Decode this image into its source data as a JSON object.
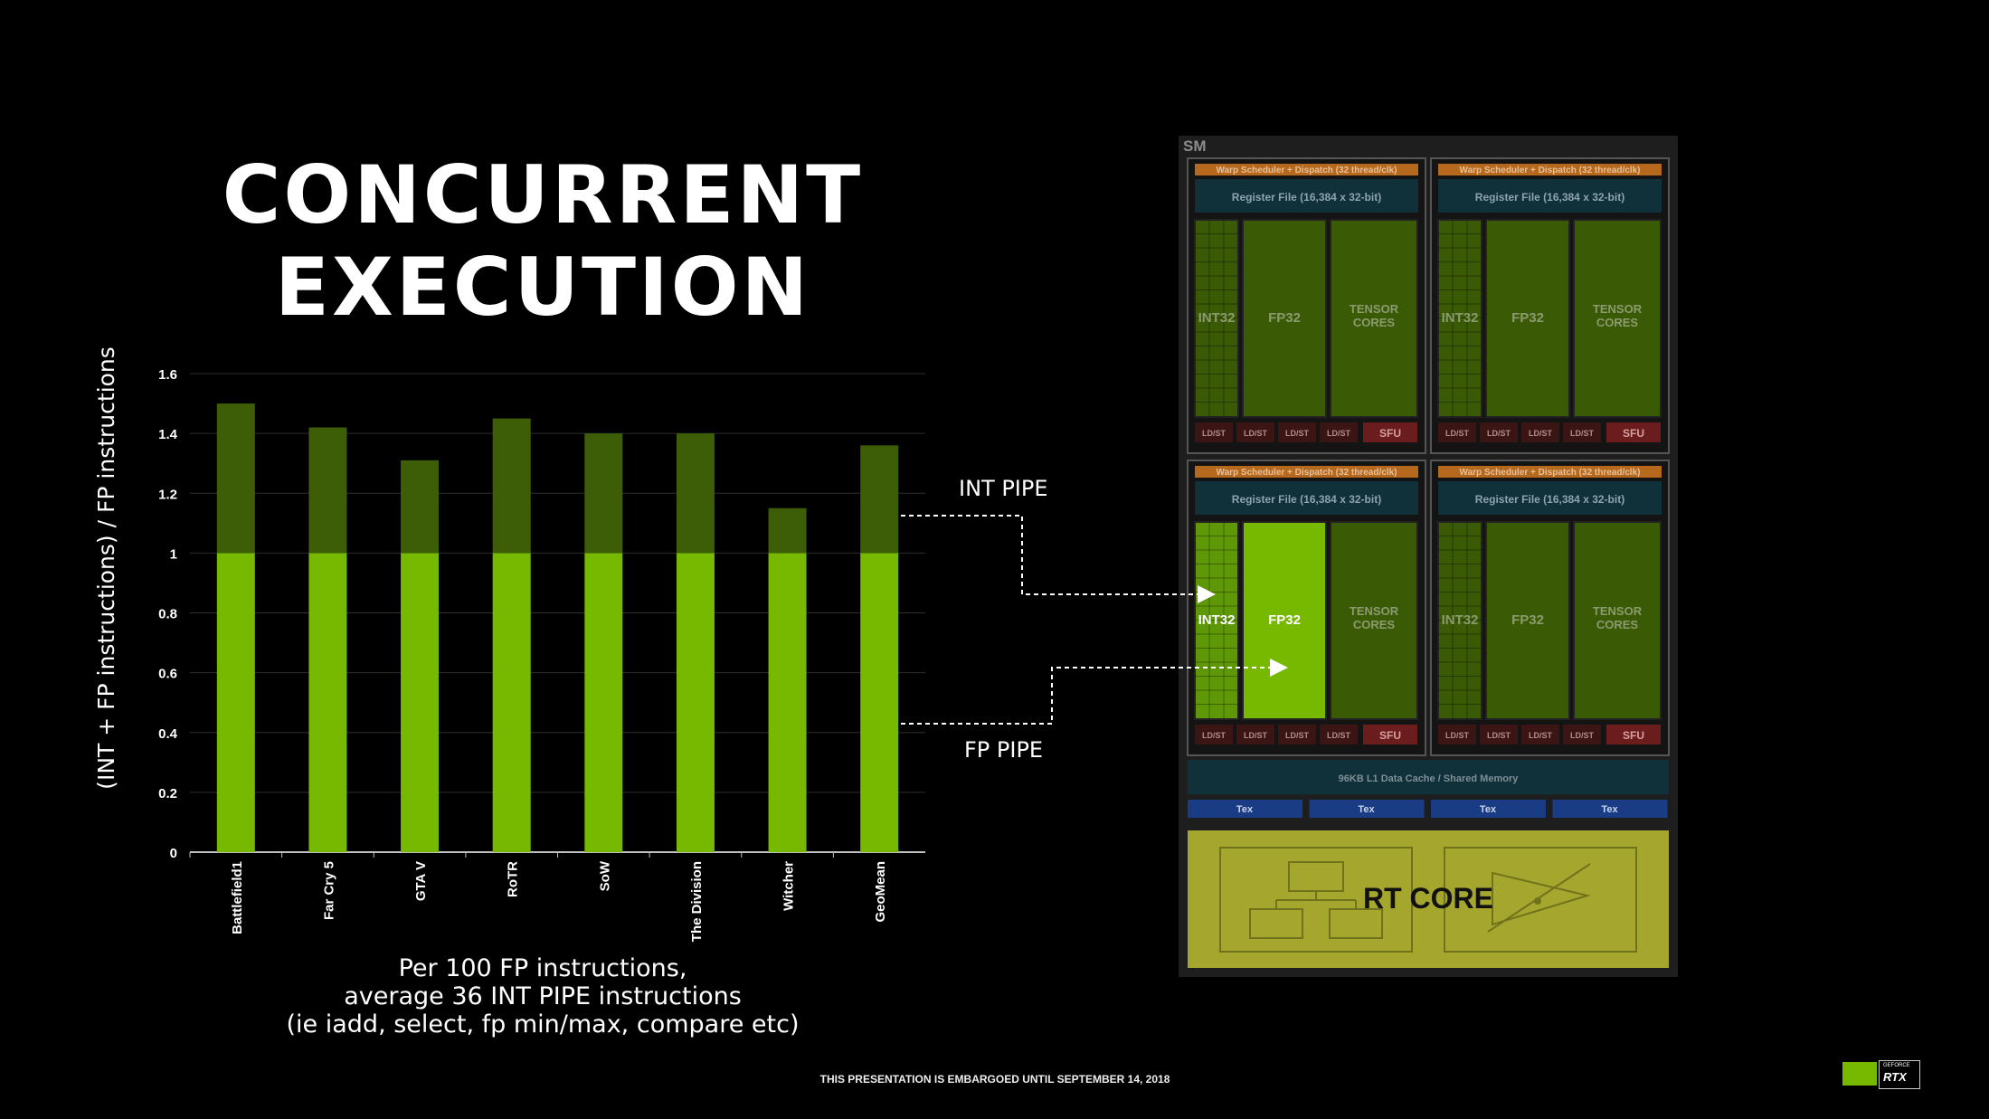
{
  "slide": {
    "title_line1": "CONCURRENT",
    "title_line2": "EXECUTION",
    "caption_line1": "Per 100 FP instructions,",
    "caption_line2": "average 36 INT PIPE instructions",
    "caption_line3": "(ie iadd, select, fp min/max, compare etc)",
    "embargo": "THIS PRESENTATION IS EMBARGOED UNTIL SEPTEMBER 14, 2018",
    "int_pipe_label": "INT PIPE",
    "fp_pipe_label": "FP PIPE"
  },
  "chart_data": {
    "type": "bar",
    "stacked": true,
    "categories": [
      "Battlefield1",
      "Far Cry 5",
      "GTA V",
      "RoTR",
      "SoW",
      "The Division",
      "Witcher",
      "GeoMean"
    ],
    "series": [
      {
        "values": [
          1,
          1,
          1,
          1,
          1,
          1,
          1,
          1
        ],
        "color": "#76b900"
      },
      {
        "values": [
          0.5,
          0.42,
          0.31,
          0.45,
          0.4,
          0.4,
          0.15,
          0.36
        ],
        "color": "#3d5e06"
      }
    ],
    "title": "",
    "xlabel": "",
    "ylabel": "(INT + FP instructions) / FP instructions",
    "ylim": [
      0,
      1.6
    ],
    "yticks": [
      "0",
      "0.2",
      "0.4",
      "0.6",
      "0.8",
      "1",
      "1.2",
      "1.4",
      "1.6"
    ],
    "grid": true,
    "legend": "none"
  },
  "sm_diagram": {
    "label": "SM",
    "warp_scheduler": "Warp Scheduler + Dispatch (32 thread/clk)",
    "register_file": "Register File (16,384 x 32-bit)",
    "int32": "INT32",
    "fp32": "FP32",
    "tensor_line1": "TENSOR",
    "tensor_line2": "CORES",
    "ldst": "LD/ST",
    "sfu": "SFU",
    "l1_cache": "96KB L1 Data Cache / Shared Memory",
    "tex": "Tex",
    "rt_core": "RT CORE",
    "colors": {
      "active": "#76b900",
      "inactive": "#3b5a05",
      "panel": "#0f1f26",
      "rt": "#a4a62e"
    }
  },
  "logo": {
    "brand": "GEFORCE",
    "product": "RTX"
  }
}
